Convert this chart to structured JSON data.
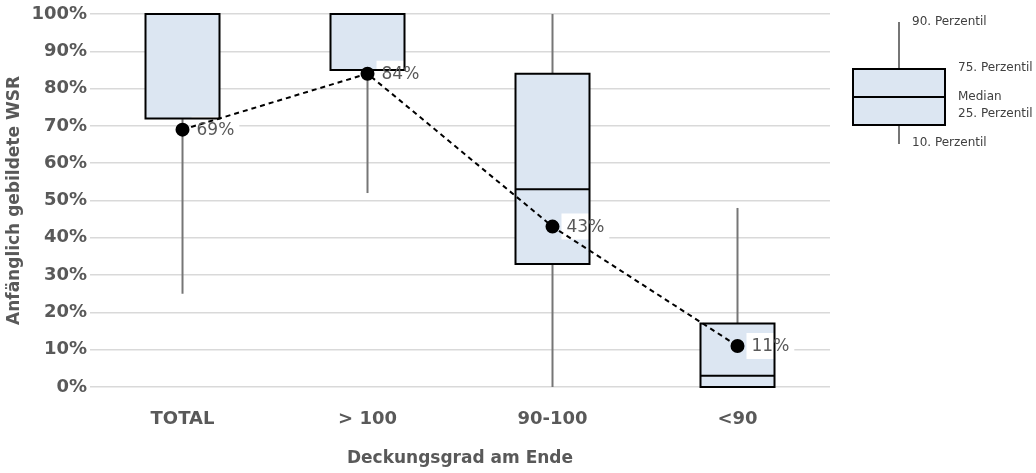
{
  "chart_data": {
    "type": "box",
    "xlabel": "Deckungsgrad am Ende",
    "ylabel": "Anfänglich gebildete WSR",
    "categories": [
      "TOTAL",
      "> 100",
      "90-100",
      "<90"
    ],
    "series": [
      {
        "type": "box",
        "color": "#dce6f2",
        "boxes": [
          {
            "low": 25,
            "q1": 72,
            "median": 100,
            "q3": 100,
            "high": 100
          },
          {
            "low": 52,
            "q1": 85,
            "median": 100,
            "q3": 100,
            "high": 100
          },
          {
            "low": 0,
            "q1": 33,
            "median": 53,
            "q3": 84,
            "high": 100
          },
          {
            "low": 0,
            "q1": 0,
            "median": 3,
            "q3": 17,
            "high": 48
          }
        ]
      },
      {
        "type": "line",
        "color": "#000000",
        "values": [
          69,
          84,
          43,
          11
        ],
        "value_labels": [
          "69%",
          "84%",
          "43%",
          "11%"
        ]
      }
    ],
    "marker": "circle",
    "line_style": "dashed",
    "ylim": [
      0,
      100
    ],
    "yticks": [
      {
        "value": 0,
        "label": "0%"
      },
      {
        "value": 10,
        "label": "10%"
      },
      {
        "value": 20,
        "label": "20%"
      },
      {
        "value": 30,
        "label": "30%"
      },
      {
        "value": 40,
        "label": "40%"
      },
      {
        "value": 50,
        "label": "50%"
      },
      {
        "value": 60,
        "label": "60%"
      },
      {
        "value": 70,
        "label": "70%"
      },
      {
        "value": 80,
        "label": "80%"
      },
      {
        "value": 90,
        "label": "90%"
      },
      {
        "value": 100,
        "label": "100%"
      }
    ],
    "grid": "y",
    "legend": false,
    "annotations": [
      "90. Perzentil",
      "75. Perzentil",
      "Median",
      "25. Perzentil",
      "10. Perzentil"
    ]
  }
}
